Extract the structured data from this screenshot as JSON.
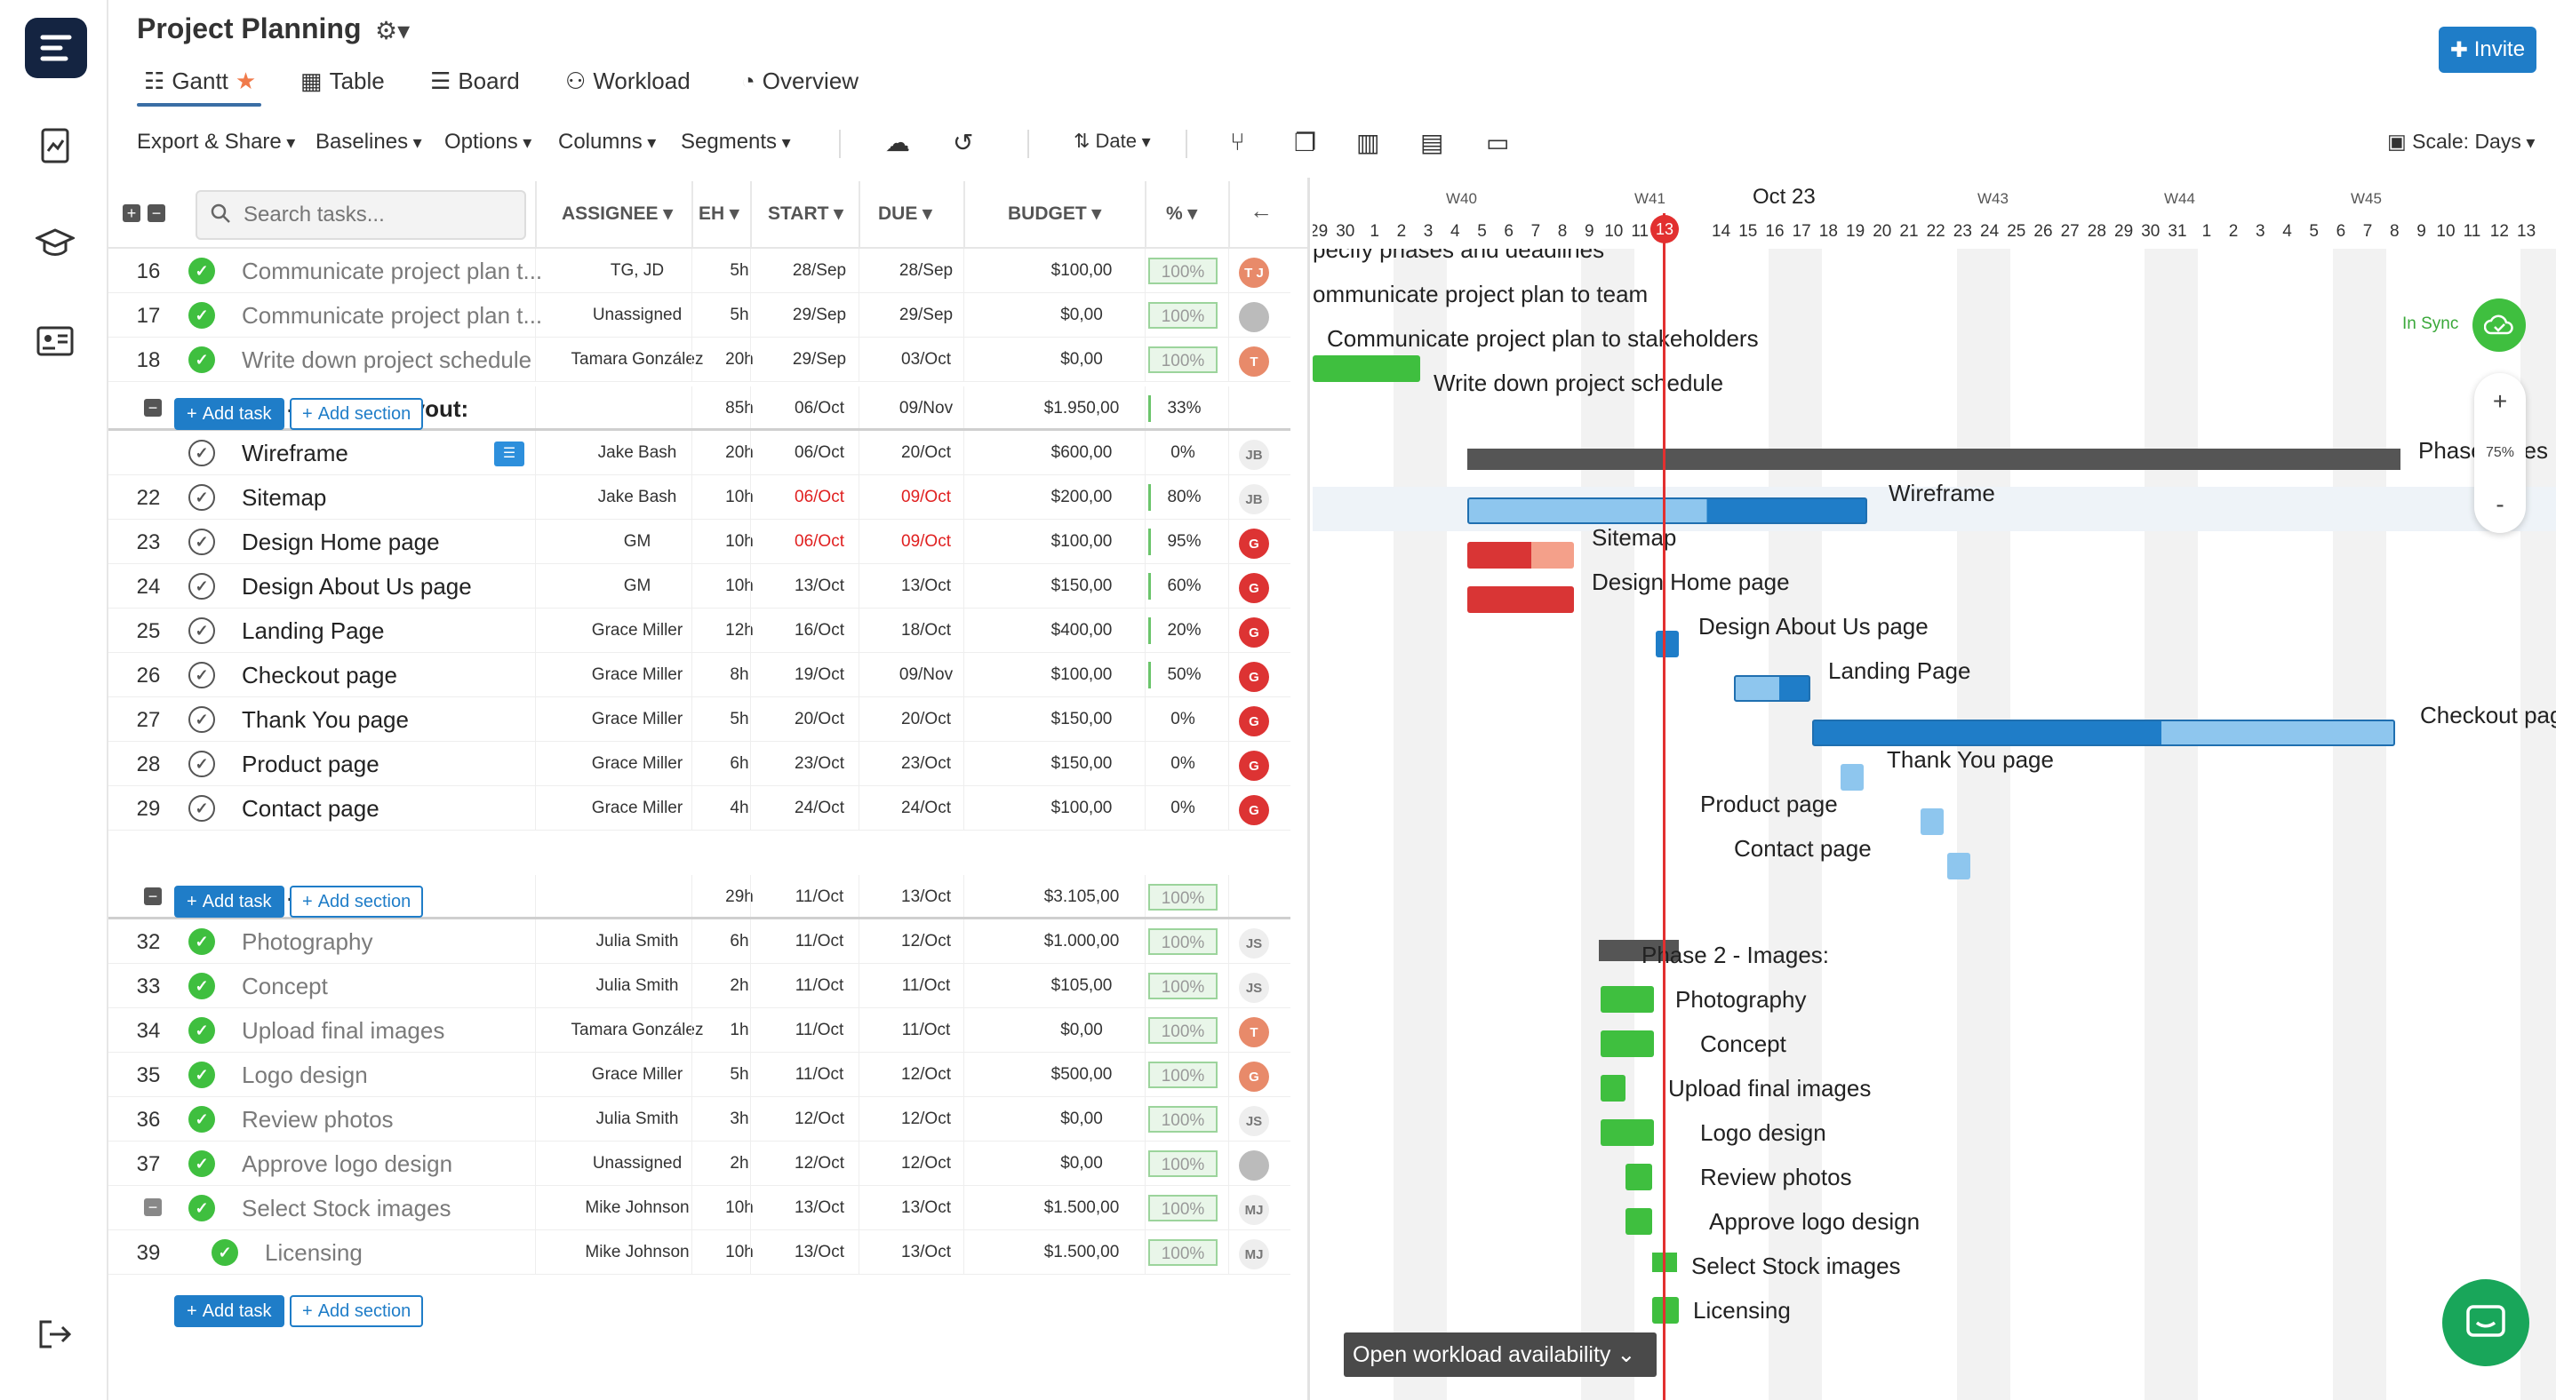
{
  "app": {
    "title": "Project Planning",
    "invite": "Invite"
  },
  "tabs": [
    "Gantt",
    "Table",
    "Board",
    "Workload",
    "Overview"
  ],
  "toolbar": {
    "export": "Export & Share",
    "baselines": "Baselines",
    "options": "Options",
    "columns": "Columns",
    "segments": "Segments",
    "date": "Date",
    "scale": "Scale: Days"
  },
  "search": {
    "placeholder": "Search tasks..."
  },
  "columns": {
    "assignee": "ASSIGNEE",
    "eh": "EH",
    "start": "START",
    "due": "DUE",
    "budget": "BUDGET",
    "pct": "%"
  },
  "rows": [
    {
      "num": "16",
      "name": "Communicate project plan t...",
      "assignee": "TG, JD",
      "eh": "5h",
      "start": "28/Sep",
      "due": "28/Sep",
      "budget": "$100,00",
      "pct": "100%"
    },
    {
      "num": "17",
      "name": "Communicate project plan t...",
      "assignee": "Unassigned",
      "eh": "5h",
      "start": "29/Sep",
      "due": "29/Sep",
      "budget": "$0,00",
      "pct": "100%"
    },
    {
      "num": "18",
      "name": "Write down project schedule",
      "assignee": "Tamara González",
      "eh": "20h",
      "start": "29/Sep",
      "due": "03/Oct",
      "budget": "$0,00",
      "pct": "100%"
    },
    {
      "num": "",
      "name": "Phase 1 - Design/Layout:",
      "assignee": "",
      "eh": "85h",
      "start": "06/Oct",
      "due": "09/Nov",
      "budget": "$1.950,00",
      "pct": "33%"
    },
    {
      "num": "",
      "name": "Wireframe",
      "assignee": "Jake Bash",
      "eh": "20h",
      "start": "06/Oct",
      "due": "20/Oct",
      "budget": "$600,00",
      "pct": "0%"
    },
    {
      "num": "22",
      "name": "Sitemap",
      "assignee": "Jake Bash",
      "eh": "10h",
      "start": "06/Oct",
      "due": "09/Oct",
      "budget": "$200,00",
      "pct": "80%"
    },
    {
      "num": "23",
      "name": "Design Home page",
      "assignee": "GM",
      "eh": "10h",
      "start": "06/Oct",
      "due": "09/Oct",
      "budget": "$100,00",
      "pct": "95%"
    },
    {
      "num": "24",
      "name": "Design About Us page",
      "assignee": "GM",
      "eh": "10h",
      "start": "13/Oct",
      "due": "13/Oct",
      "budget": "$150,00",
      "pct": "60%"
    },
    {
      "num": "25",
      "name": "Landing Page",
      "assignee": "Grace Miller",
      "eh": "12h",
      "start": "16/Oct",
      "due": "18/Oct",
      "budget": "$400,00",
      "pct": "20%"
    },
    {
      "num": "26",
      "name": "Checkout page",
      "assignee": "Grace Miller",
      "eh": "8h",
      "start": "19/Oct",
      "due": "09/Nov",
      "budget": "$100,00",
      "pct": "50%"
    },
    {
      "num": "27",
      "name": "Thank You page",
      "assignee": "Grace Miller",
      "eh": "5h",
      "start": "20/Oct",
      "due": "20/Oct",
      "budget": "$150,00",
      "pct": "0%"
    },
    {
      "num": "28",
      "name": "Product page",
      "assignee": "Grace Miller",
      "eh": "6h",
      "start": "23/Oct",
      "due": "23/Oct",
      "budget": "$150,00",
      "pct": "0%"
    },
    {
      "num": "29",
      "name": "Contact page",
      "assignee": "Grace Miller",
      "eh": "4h",
      "start": "24/Oct",
      "due": "24/Oct",
      "budget": "$100,00",
      "pct": "0%"
    },
    {
      "num": "",
      "name": "Phase 2 - Images:",
      "assignee": "",
      "eh": "29h",
      "start": "11/Oct",
      "due": "13/Oct",
      "budget": "$3.105,00",
      "pct": "100%"
    },
    {
      "num": "32",
      "name": "Photography",
      "assignee": "Julia Smith",
      "eh": "6h",
      "start": "11/Oct",
      "due": "12/Oct",
      "budget": "$1.000,00",
      "pct": "100%"
    },
    {
      "num": "33",
      "name": "Concept",
      "assignee": "Julia Smith",
      "eh": "2h",
      "start": "11/Oct",
      "due": "11/Oct",
      "budget": "$105,00",
      "pct": "100%"
    },
    {
      "num": "34",
      "name": "Upload final images",
      "assignee": "Tamara González",
      "eh": "1h",
      "start": "11/Oct",
      "due": "11/Oct",
      "budget": "$0,00",
      "pct": "100%"
    },
    {
      "num": "35",
      "name": "Logo design",
      "assignee": "Grace Miller",
      "eh": "5h",
      "start": "11/Oct",
      "due": "12/Oct",
      "budget": "$500,00",
      "pct": "100%"
    },
    {
      "num": "36",
      "name": "Review photos",
      "assignee": "Julia Smith",
      "eh": "3h",
      "start": "12/Oct",
      "due": "12/Oct",
      "budget": "$0,00",
      "pct": "100%"
    },
    {
      "num": "37",
      "name": "Approve logo design",
      "assignee": "Unassigned",
      "eh": "2h",
      "start": "12/Oct",
      "due": "12/Oct",
      "budget": "$0,00",
      "pct": "100%"
    },
    {
      "num": "",
      "name": "Select Stock images",
      "assignee": "Mike Johnson",
      "eh": "10h",
      "start": "13/Oct",
      "due": "13/Oct",
      "budget": "$1.500,00",
      "pct": "100%"
    },
    {
      "num": "39",
      "name": "Licensing",
      "assignee": "Mike Johnson",
      "eh": "10h",
      "start": "13/Oct",
      "due": "13/Oct",
      "budget": "$1.500,00",
      "pct": "100%"
    }
  ],
  "avatars": [
    "T J",
    "",
    "T",
    "",
    "JB",
    "JB",
    "G",
    "G",
    "G",
    "G",
    "G",
    "G",
    "G",
    "",
    "JS",
    "JS",
    "T",
    "G",
    "JS",
    "",
    "MJ",
    "MJ"
  ],
  "buttons": {
    "add_task": "Add task",
    "add_section": "Add section"
  },
  "gantt": {
    "weeks": [
      "W40",
      "W41",
      "Oct 23",
      "W43",
      "W44",
      "W45"
    ],
    "days": [
      "29",
      "30",
      "1",
      "2",
      "3",
      "4",
      "5",
      "6",
      "7",
      "8",
      "9",
      "10",
      "11",
      "12",
      "13",
      "14",
      "15",
      "16",
      "17",
      "18",
      "19",
      "20",
      "21",
      "22",
      "23",
      "24",
      "25",
      "26",
      "27",
      "28",
      "29",
      "30",
      "31",
      "1",
      "2",
      "3",
      "4",
      "5",
      "6",
      "7",
      "8",
      "9",
      "10",
      "11",
      "12",
      "13"
    ],
    "labels": [
      "pecify phases and deadlines",
      "ommunicate project plan to team",
      "Communicate project plan to stakeholders",
      "Write down project schedule",
      "Phase 1 - es",
      "Wireframe",
      "Sitemap",
      "Design Home page",
      "Design About Us page",
      "Landing Page",
      "Checkout pag",
      "Thank You page",
      "Product page",
      "Contact page",
      "Phase 2 - Images:",
      "Photography",
      "Concept",
      "Upload final images",
      "Logo design",
      "Review photos",
      "Approve logo design",
      "Select Stock images",
      "Licensing"
    ],
    "in_sync": "In Sync",
    "zoom": "75%",
    "open_workload": "Open workload availability"
  },
  "colors": {
    "blue": "#1f7dc8",
    "green": "#3fbf3f",
    "red": "#e23d3d"
  }
}
